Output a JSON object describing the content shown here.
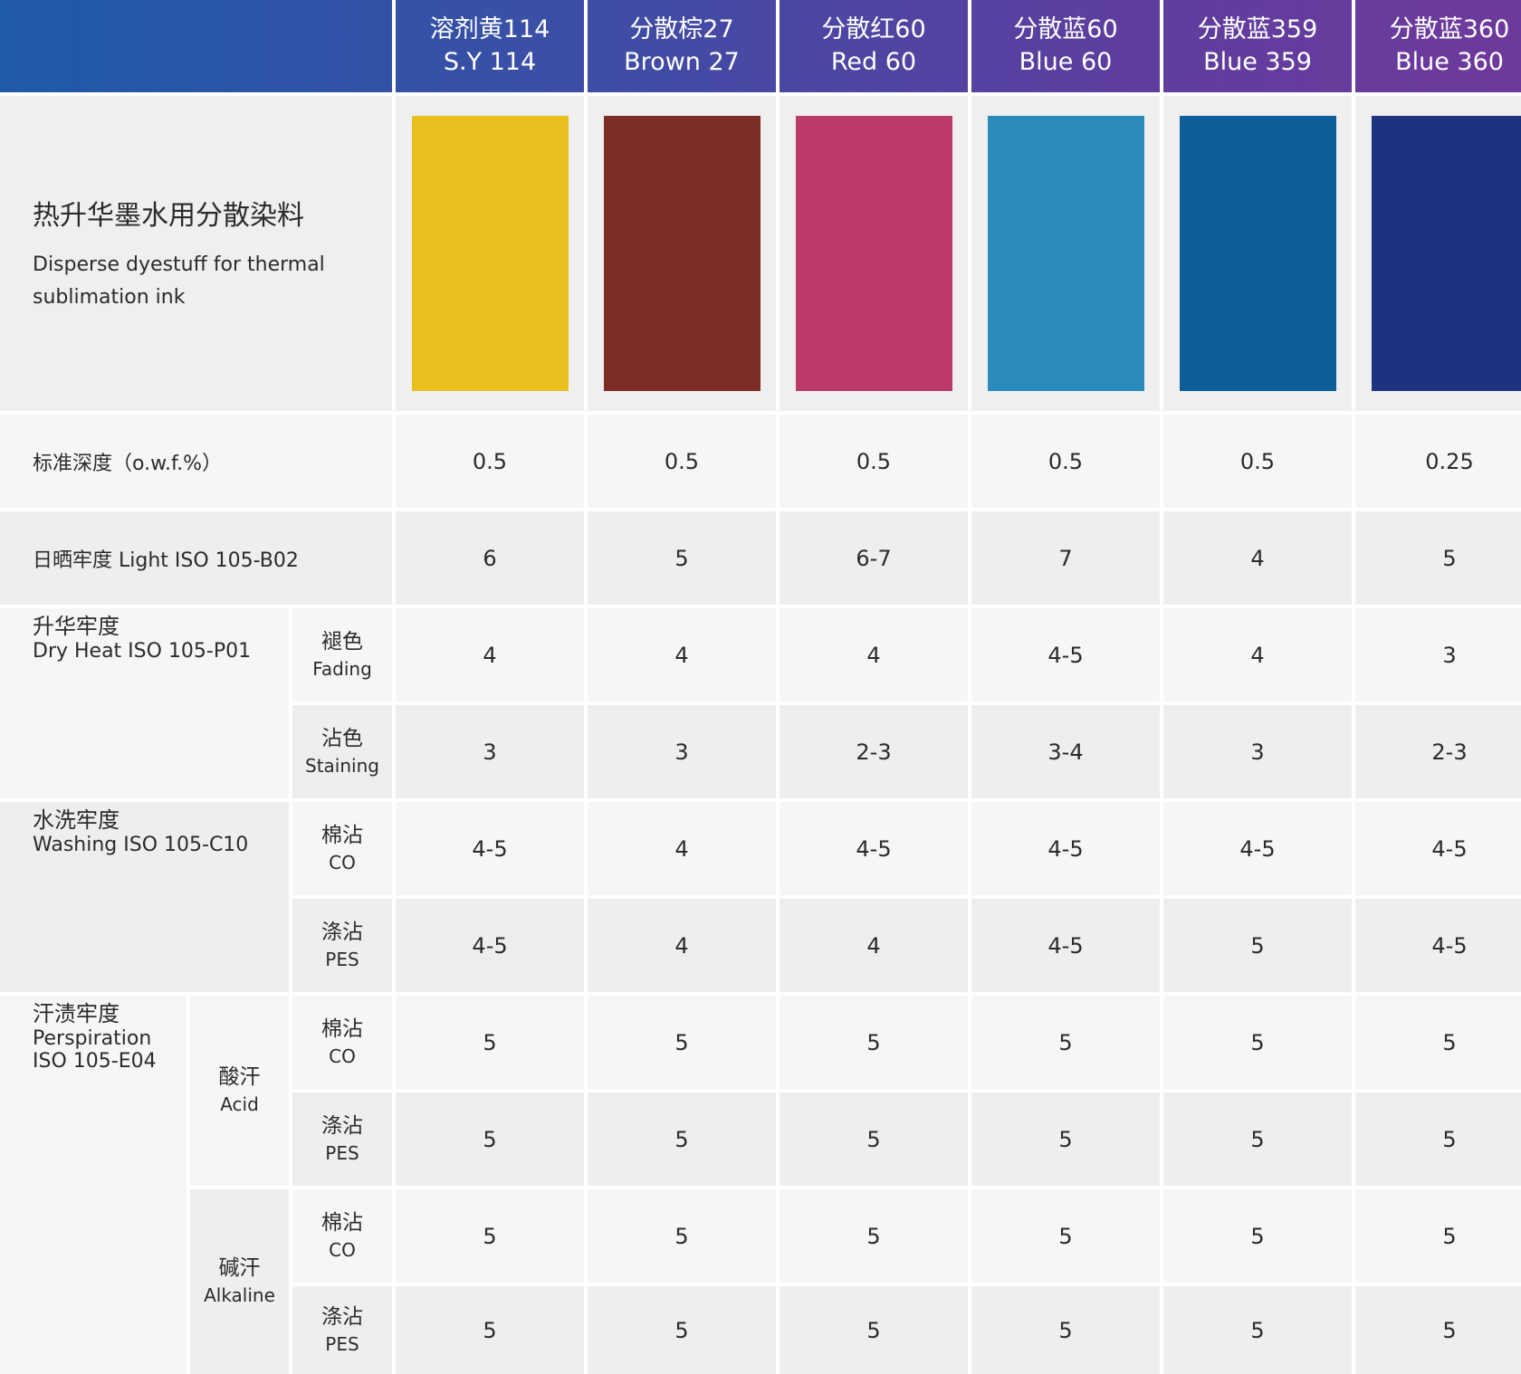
{
  "header": {
    "products": [
      {
        "zh": "溶剂黄114",
        "en": "S.Y 114",
        "color": "#e8bf1d"
      },
      {
        "zh": "分散棕27",
        "en": "Brown 27",
        "color": "#7c2e24"
      },
      {
        "zh": "分散红60",
        "en": "Red 60",
        "color": "#bb3a6a"
      },
      {
        "zh": "分散蓝60",
        "en": "Blue 60",
        "color": "#2b8cbb"
      },
      {
        "zh": "分散蓝359",
        "en": "Blue 359",
        "color": "#0e5f99"
      },
      {
        "zh": "分散蓝360",
        "en": "Blue 360",
        "color": "#1c3380"
      }
    ]
  },
  "title": {
    "zh": "热升华墨水用分散染料",
    "en": "Disperse dyestuff for thermal sublimation ink"
  },
  "rows": {
    "depth": {
      "label": "标准深度（o.w.f.%）",
      "values": [
        "0.5",
        "0.5",
        "0.5",
        "0.5",
        "0.5",
        "0.25"
      ]
    },
    "light": {
      "label": "日晒牢度 Light ISO 105-B02",
      "values": [
        "6",
        "5",
        "6-7",
        "7",
        "4",
        "5"
      ]
    },
    "dry_heat": {
      "zh": "升华牢度",
      "en": "Dry Heat ISO 105-P01",
      "fading": {
        "zh": "褪色",
        "en": "Fading",
        "values": [
          "4",
          "4",
          "4",
          "4-5",
          "4",
          "3"
        ]
      },
      "staining": {
        "zh": "沾色",
        "en": "Staining",
        "values": [
          "3",
          "3",
          "2-3",
          "3-4",
          "3",
          "2-3"
        ]
      }
    },
    "washing": {
      "zh": "水洗牢度",
      "en": "Washing ISO 105-C10",
      "co": {
        "zh": "棉沾",
        "en": "CO",
        "values": [
          "4-5",
          "4",
          "4-5",
          "4-5",
          "4-5",
          "4-5"
        ]
      },
      "pes": {
        "zh": "涤沾",
        "en": "PES",
        "values": [
          "4-5",
          "4",
          "4",
          "4-5",
          "5",
          "4-5"
        ]
      }
    },
    "perspiration": {
      "zh": "汗渍牢度",
      "en1": "Perspiration",
      "en2": "ISO 105-E04",
      "acid": {
        "zh": "酸汗",
        "en": "Acid",
        "co": {
          "zh": "棉沾",
          "en": "CO",
          "values": [
            "5",
            "5",
            "5",
            "5",
            "5",
            "5"
          ]
        },
        "pes": {
          "zh": "涤沾",
          "en": "PES",
          "values": [
            "5",
            "5",
            "5",
            "5",
            "5",
            "5"
          ]
        }
      },
      "alkaline": {
        "zh": "碱汗",
        "en": "Alkaline",
        "co": {
          "zh": "棉沾",
          "en": "CO",
          "values": [
            "5",
            "5",
            "5",
            "5",
            "5",
            "5"
          ]
        },
        "pes": {
          "zh": "涤沾",
          "en": "PES",
          "values": [
            "5",
            "5",
            "5",
            "5",
            "5",
            "5"
          ]
        }
      }
    }
  }
}
